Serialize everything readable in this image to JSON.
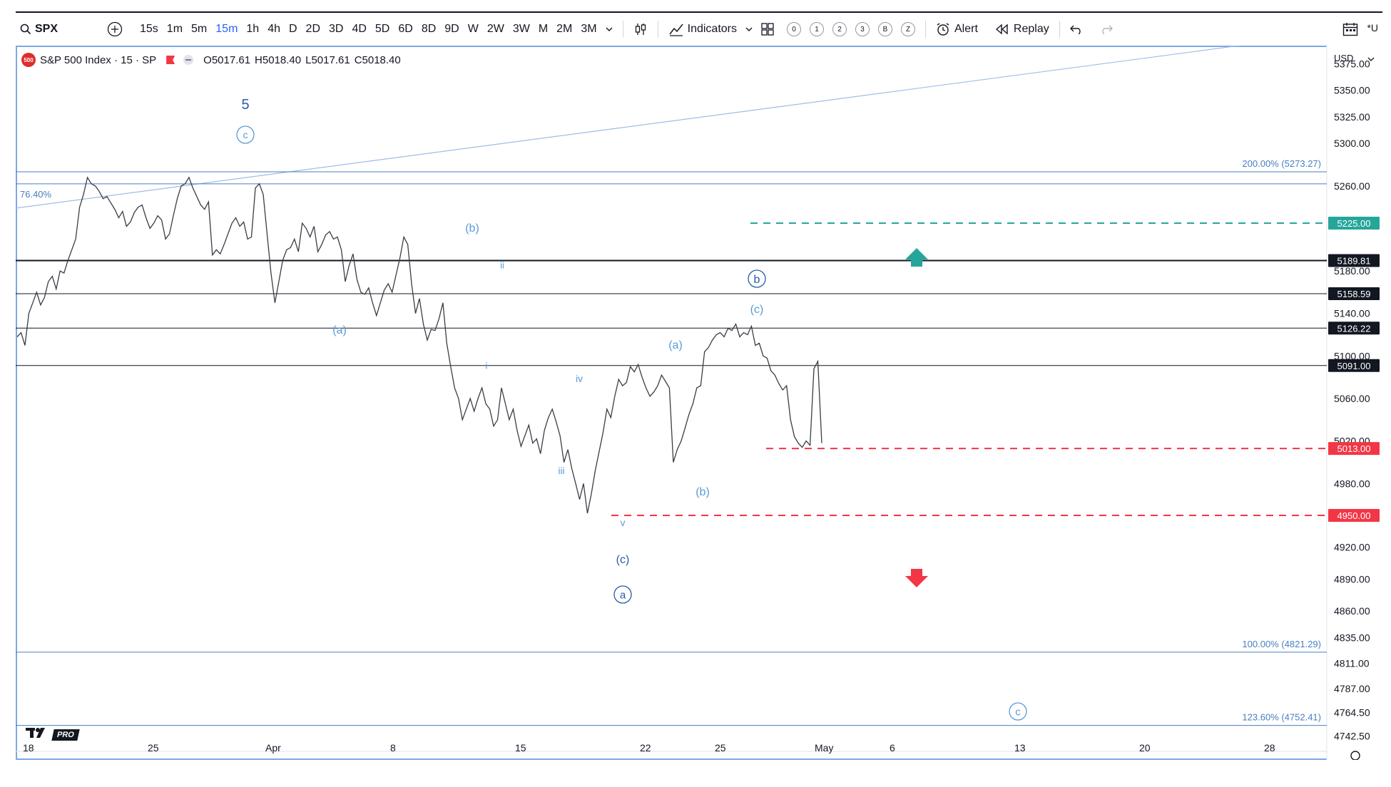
{
  "toolbar": {
    "symbol": "SPX",
    "intervals": [
      "15s",
      "1m",
      "5m",
      "15m",
      "1h",
      "4h",
      "D",
      "2D",
      "3D",
      "4D",
      "5D",
      "6D",
      "8D",
      "9D",
      "W",
      "2W",
      "3W",
      "M",
      "2M",
      "3M"
    ],
    "active_interval": "15m",
    "indicators_label": "Indicators",
    "layout_slots": [
      "0",
      "1",
      "2",
      "3",
      "B",
      "Z"
    ],
    "alert_label": "Alert",
    "replay_label": "Replay",
    "right_label": "*U"
  },
  "legend": {
    "title": "S&P 500 Index · 15 · SP",
    "logo_text": "500",
    "open": "O5017.61",
    "high": "H5018.40",
    "low": "L5017.61",
    "close": "C5018.40"
  },
  "currency": "USD",
  "tv_pro": "PRO",
  "colors": {
    "green": "#26a69a",
    "red": "#f23645",
    "wave": "#5b9bd5",
    "wave_dark": "#2a5ba8",
    "fib": "#4a7ec2"
  },
  "chart_data": {
    "type": "line",
    "y_range": [
      4728,
      5392
    ],
    "y_ticks": [
      "5375.00",
      "5350.00",
      "5325.00",
      "5300.00",
      "5260.00",
      "5180.00",
      "5140.00",
      "5100.00",
      "5060.00",
      "5020.00",
      "4980.00",
      "4920.00",
      "4890.00",
      "4860.00",
      "4835.00",
      "4811.00",
      "4787.00",
      "4764.50",
      "4742.50"
    ],
    "x_ticks": [
      "18",
      "25",
      "Apr",
      "8",
      "15",
      "22",
      "25",
      "May",
      "6",
      "13",
      "20",
      "28"
    ],
    "series": [
      {
        "values": [
          5118,
          5122,
          5110,
          5140,
          5150,
          5160,
          5148,
          5155,
          5170,
          5175,
          5163,
          5180,
          5178,
          5190,
          5200,
          5210,
          5240,
          5252,
          5268,
          5262,
          5260,
          5255,
          5248,
          5250,
          5244,
          5238,
          5230,
          5236,
          5222,
          5226,
          5235,
          5240,
          5242,
          5230,
          5220,
          5225,
          5232,
          5228,
          5210,
          5215,
          5232,
          5248,
          5260,
          5262,
          5268,
          5258,
          5250,
          5242,
          5238,
          5245,
          5195,
          5200,
          5196,
          5205,
          5215,
          5225,
          5230,
          5222,
          5226,
          5210,
          5212,
          5258,
          5262,
          5252,
          5215,
          5178,
          5150,
          5170,
          5190,
          5200,
          5202,
          5210,
          5198,
          5225,
          5220,
          5212,
          5222,
          5198,
          5205,
          5214,
          5217,
          5210,
          5212,
          5200,
          5170,
          5185,
          5196,
          5172,
          5160,
          5158,
          5164,
          5150,
          5138,
          5150,
          5162,
          5168,
          5160,
          5176,
          5192,
          5212,
          5205,
          5168,
          5140,
          5154,
          5130,
          5115,
          5125,
          5124,
          5135,
          5150,
          5112,
          5090,
          5070,
          5060,
          5040,
          5050,
          5060,
          5048,
          5060,
          5070,
          5055,
          5050,
          5034,
          5040,
          5070,
          5055,
          5040,
          5050,
          5030,
          5015,
          5025,
          5035,
          5018,
          5022,
          5008,
          5030,
          5042,
          5050,
          5038,
          5025,
          5000,
          5012,
          4994,
          4980,
          4965,
          4980,
          4952,
          4970,
          4992,
          5010,
          5028,
          5050,
          5042,
          5062,
          5078,
          5072,
          5075,
          5090,
          5085,
          5092,
          5080,
          5070,
          5062,
          5066,
          5072,
          5082,
          5076,
          5070,
          5000,
          5012,
          5020,
          5032,
          5045,
          5055,
          5070,
          5072,
          5104,
          5108,
          5115,
          5120,
          5122,
          5118,
          5126,
          5124,
          5130,
          5118,
          5122,
          5120,
          5128,
          5110,
          5112,
          5100,
          5098,
          5086,
          5082,
          5074,
          5068,
          5072,
          5040,
          5024,
          5018,
          5014,
          5020,
          5016,
          5088,
          5095,
          5018
        ],
        "x_start": "Mar 18",
        "x_end": "May 2"
      }
    ],
    "horizontal_levels": [
      {
        "value": 5189.81,
        "label": "5189.81",
        "style": "solid-black"
      },
      {
        "value": 5158.59,
        "label": "5158.59",
        "style": "solid-black"
      },
      {
        "value": 5126.22,
        "label": "5126.22",
        "style": "solid-black"
      },
      {
        "value": 5091.0,
        "label": "5091.00",
        "style": "solid-black"
      },
      {
        "value": 5225.0,
        "label": "5225.00",
        "style": "dashed-green"
      },
      {
        "value": 5013.0,
        "label": "5013.00",
        "style": "dashed-red"
      },
      {
        "value": 4950.0,
        "label": "4950.00",
        "style": "dashed-red"
      }
    ],
    "fib_levels": [
      {
        "value": 5273.27,
        "label": "200.00% (5273.27)"
      },
      {
        "value": 4821.29,
        "label": "100.00% (4821.29)"
      },
      {
        "value": 4752.41,
        "label": "123.60% (4752.41)"
      }
    ],
    "fib_left_label": "76.40%",
    "wave_labels": [
      "5",
      "c",
      "(b)",
      "ii",
      "(a)",
      "i",
      "iv",
      "iii",
      "v",
      "(c)",
      "a",
      "(a)",
      "(b)",
      "b",
      "(c)",
      "c"
    ]
  }
}
